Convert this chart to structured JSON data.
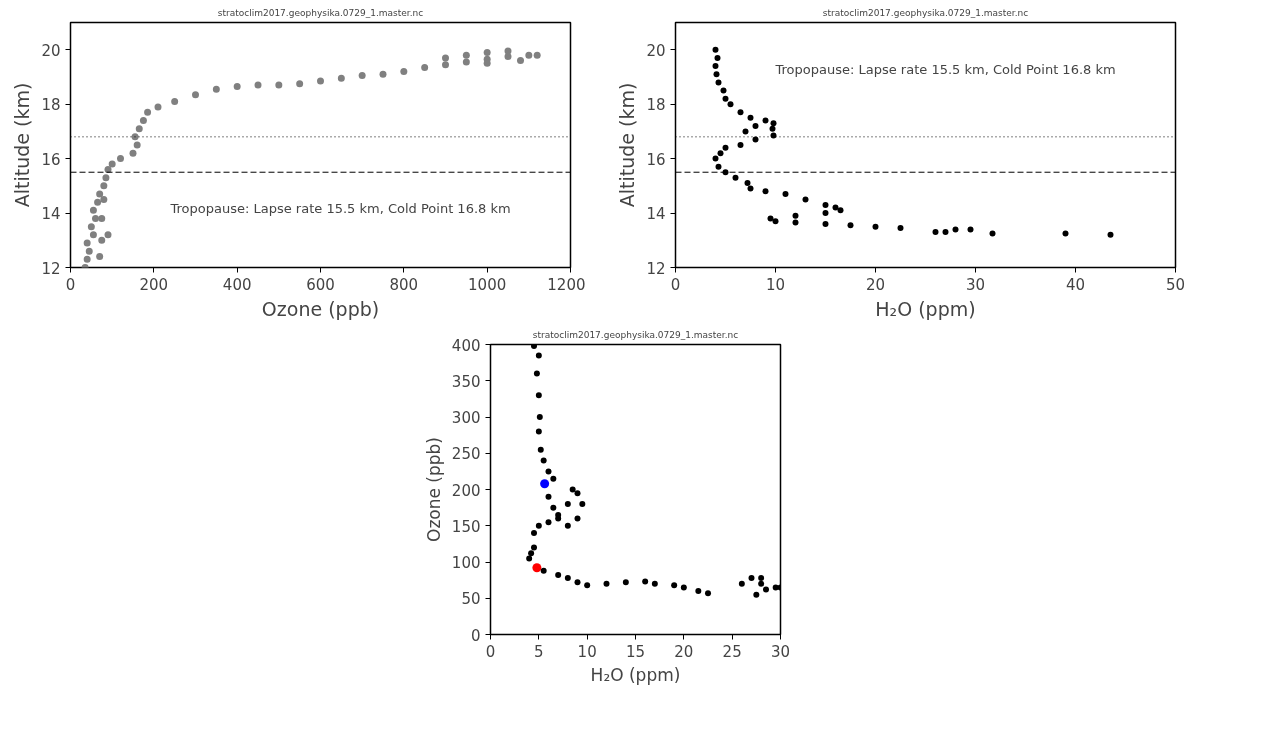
{
  "chart_data": [
    {
      "type": "scatter",
      "title": "stratoclim2017.geophysika.0729_1.master.nc",
      "xlabel": "Ozone (ppb)",
      "ylabel": "Altitude (km)",
      "marker": "circle",
      "grid": false,
      "xlim": [
        0,
        1200
      ],
      "ylim": [
        12,
        21
      ],
      "xticks": [
        0,
        200,
        400,
        600,
        800,
        1000,
        1200
      ],
      "yticks": [
        12,
        14,
        16,
        18,
        20
      ],
      "ref_lines": [
        {
          "axis": "y",
          "value": 15.5,
          "color": "#000000",
          "line_style": "dashed"
        },
        {
          "axis": "y",
          "value": 16.8,
          "color": "#000000",
          "line_style": "dotted"
        }
      ],
      "annotations": [
        "Tropopause: Lapse rate 15.5 km, Cold Point 16.8 km"
      ],
      "series": [
        {
          "color": "#808080",
          "x": [
            35,
            40,
            45,
            40,
            55,
            50,
            60,
            55,
            65,
            70,
            80,
            85,
            90,
            100,
            120,
            150,
            160,
            155,
            165,
            175,
            185,
            210,
            250,
            300,
            350,
            400,
            450,
            500,
            550,
            600,
            650,
            700,
            750,
            800,
            850,
            900,
            950,
            1000,
            1050,
            1100,
            1120,
            1050,
            1000,
            950,
            900,
            1000,
            1080,
            70,
            75,
            90,
            75,
            80
          ],
          "values": [
            12.0,
            12.3,
            12.6,
            12.9,
            13.2,
            13.5,
            13.8,
            14.1,
            14.4,
            14.7,
            15.0,
            15.3,
            15.6,
            15.8,
            16.0,
            16.2,
            16.5,
            16.8,
            17.1,
            17.4,
            17.7,
            17.9,
            18.1,
            18.35,
            18.55,
            18.65,
            18.7,
            18.7,
            18.75,
            18.85,
            18.95,
            19.05,
            19.1,
            19.2,
            19.35,
            19.45,
            19.55,
            19.65,
            19.75,
            19.8,
            19.8,
            19.95,
            19.9,
            19.8,
            19.7,
            19.5,
            19.6,
            12.4,
            13.0,
            13.2,
            13.8,
            14.5
          ]
        }
      ]
    },
    {
      "type": "scatter",
      "title": "stratoclim2017.geophysika.0729_1.master.nc",
      "xlabel": "H₂O (ppm)",
      "ylabel": "Altitude (km)",
      "marker": "circle",
      "grid": false,
      "xlim": [
        0,
        50
      ],
      "ylim": [
        12,
        21
      ],
      "xticks": [
        0,
        10,
        20,
        30,
        40,
        50
      ],
      "yticks": [
        12,
        14,
        16,
        18,
        20
      ],
      "ref_lines": [
        {
          "axis": "y",
          "value": 15.5,
          "color": "#000000",
          "line_style": "dashed"
        },
        {
          "axis": "y",
          "value": 16.8,
          "color": "#000000",
          "line_style": "dotted"
        }
      ],
      "annotations": [
        "Tropopause: Lapse rate 15.5 km, Cold Point 16.8 km"
      ],
      "series": [
        {
          "color": "#000000",
          "x": [
            4,
            4.2,
            4,
            4.1,
            4.3,
            4.8,
            5,
            5.5,
            6.5,
            7.5,
            9,
            9.8,
            8,
            9.7,
            7,
            9.8,
            8,
            6.5,
            5,
            4.5,
            4,
            4.3,
            5,
            6,
            7.2,
            7.5,
            9,
            11,
            13,
            15,
            16.5,
            16,
            15,
            12,
            9.5,
            10,
            12,
            15,
            17.5,
            20,
            22.5,
            26,
            27,
            28,
            29.5,
            31.7,
            39,
            43.5
          ],
          "values": [
            20,
            19.7,
            19.4,
            19.1,
            18.8,
            18.5,
            18.2,
            18,
            17.7,
            17.5,
            17.4,
            17.3,
            17.2,
            17.1,
            17.0,
            16.85,
            16.7,
            16.5,
            16.4,
            16.2,
            16.0,
            15.7,
            15.5,
            15.3,
            15.1,
            14.9,
            14.8,
            14.7,
            14.5,
            14.3,
            14.1,
            14.2,
            14.0,
            13.9,
            13.8,
            13.7,
            13.65,
            13.6,
            13.55,
            13.5,
            13.45,
            13.3,
            13.3,
            13.4,
            13.4,
            13.25,
            13.25,
            13.2
          ]
        }
      ]
    },
    {
      "type": "scatter",
      "title": "stratoclim2017.geophysika.0729_1.master.nc",
      "xlabel": "H₂O (ppm)",
      "ylabel": "Ozone (ppb)",
      "marker": "circle",
      "grid": false,
      "xlim": [
        0,
        30
      ],
      "ylim": [
        0,
        400
      ],
      "xticks": [
        0,
        5,
        10,
        15,
        20,
        25,
        30
      ],
      "yticks": [
        0,
        50,
        100,
        150,
        200,
        250,
        300,
        350,
        400
      ],
      "series": [
        {
          "color": "#000000",
          "x": [
            4.5,
            5,
            4.8,
            5,
            5.1,
            5,
            5.2,
            5.5,
            6,
            6.5,
            6,
            6.5,
            7,
            8,
            8.5,
            9,
            9.5,
            9,
            8,
            7,
            6,
            5,
            4.5,
            4.5,
            4,
            4.2,
            5.5,
            7,
            8,
            9,
            10,
            12,
            14,
            16,
            17,
            19,
            20,
            21.5,
            22.5,
            26,
            27,
            28,
            27.5,
            28.5,
            29.5,
            30,
            28
          ],
          "values": [
            398,
            385,
            360,
            330,
            300,
            280,
            255,
            240,
            225,
            215,
            190,
            175,
            165,
            180,
            200,
            195,
            180,
            160,
            150,
            160,
            155,
            150,
            140,
            120,
            105,
            112,
            88,
            82,
            78,
            72,
            68,
            70,
            72,
            73,
            70,
            68,
            65,
            60,
            57,
            70,
            78,
            78,
            55,
            62,
            65,
            65,
            70
          ]
        },
        {
          "color": "#0000ff",
          "x": [
            5.6
          ],
          "values": [
            208
          ]
        },
        {
          "color": "#ff0000",
          "x": [
            4.8
          ],
          "values": [
            92
          ]
        }
      ]
    }
  ]
}
